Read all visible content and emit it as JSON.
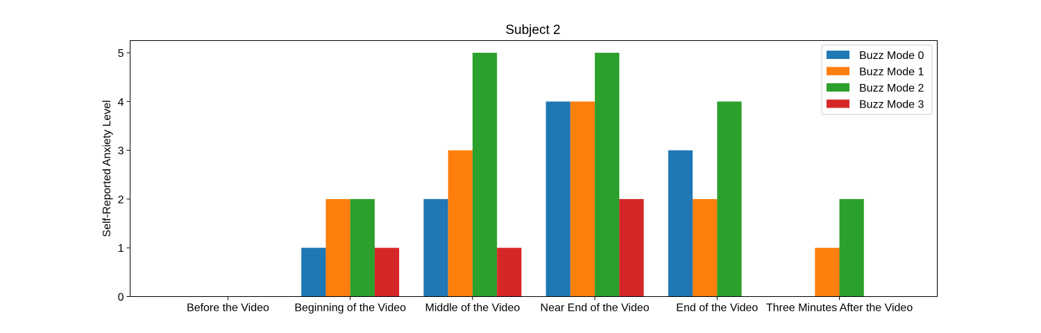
{
  "chart_data": {
    "type": "bar",
    "title": "Subject 2",
    "xlabel": "",
    "ylabel": "Self-Reported Anxiety Level",
    "ylim": [
      0,
      5.25
    ],
    "yticks": [
      "0",
      "1",
      "2",
      "3",
      "4",
      "5"
    ],
    "categories": [
      "Before the Video",
      "Beginning of the Video",
      "Middle of the Video",
      "Near End of the Video",
      "End of the Video",
      "Three Minutes After the Video"
    ],
    "series": [
      {
        "name": "Buzz Mode 0",
        "color": "#1f77b4",
        "values": [
          0,
          1,
          2,
          4,
          3,
          0
        ]
      },
      {
        "name": "Buzz Mode 1",
        "color": "#ff7f0e",
        "values": [
          0,
          2,
          3,
          4,
          2,
          1
        ]
      },
      {
        "name": "Buzz Mode 2",
        "color": "#2ca02c",
        "values": [
          0,
          2,
          5,
          5,
          4,
          2
        ]
      },
      {
        "name": "Buzz Mode 3",
        "color": "#d62728",
        "values": [
          0,
          1,
          1,
          2,
          0,
          0
        ]
      }
    ],
    "legend_position": "top-right",
    "grid": false
  }
}
